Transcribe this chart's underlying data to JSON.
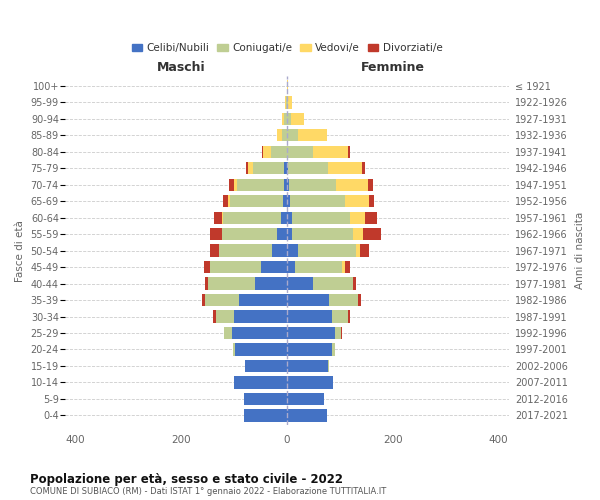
{
  "age_groups": [
    "0-4",
    "5-9",
    "10-14",
    "15-19",
    "20-24",
    "25-29",
    "30-34",
    "35-39",
    "40-44",
    "45-49",
    "50-54",
    "55-59",
    "60-64",
    "65-69",
    "70-74",
    "75-79",
    "80-84",
    "85-89",
    "90-94",
    "95-99",
    "100+"
  ],
  "birth_years": [
    "2017-2021",
    "2012-2016",
    "2007-2011",
    "2002-2006",
    "1997-2001",
    "1992-1996",
    "1987-1991",
    "1982-1986",
    "1977-1981",
    "1972-1976",
    "1967-1971",
    "1962-1966",
    "1957-1961",
    "1952-1956",
    "1947-1951",
    "1942-1946",
    "1937-1941",
    "1932-1936",
    "1927-1931",
    "1922-1926",
    "≤ 1921"
  ],
  "males": {
    "celibi": [
      82,
      82,
      100,
      80,
      98,
      105,
      100,
      90,
      60,
      50,
      28,
      18,
      12,
      8,
      5,
      5,
      0,
      0,
      0,
      0,
      0
    ],
    "coniugati": [
      0,
      0,
      0,
      0,
      5,
      15,
      35,
      65,
      90,
      95,
      100,
      105,
      110,
      100,
      90,
      60,
      30,
      10,
      5,
      2,
      0
    ],
    "vedovi": [
      0,
      0,
      0,
      0,
      0,
      0,
      0,
      0,
      0,
      0,
      0,
      1,
      2,
      3,
      5,
      8,
      15,
      8,
      5,
      2,
      0
    ],
    "divorziati": [
      0,
      0,
      0,
      0,
      0,
      0,
      5,
      5,
      5,
      12,
      18,
      22,
      15,
      10,
      10,
      5,
      2,
      0,
      0,
      0,
      0
    ]
  },
  "females": {
    "nubili": [
      75,
      70,
      88,
      78,
      85,
      90,
      85,
      80,
      50,
      15,
      20,
      10,
      10,
      5,
      3,
      2,
      0,
      0,
      0,
      0,
      0
    ],
    "coniugate": [
      0,
      0,
      0,
      2,
      5,
      12,
      30,
      55,
      75,
      90,
      110,
      115,
      110,
      105,
      90,
      75,
      50,
      20,
      8,
      2,
      0
    ],
    "vedove": [
      0,
      0,
      0,
      0,
      0,
      0,
      0,
      0,
      0,
      5,
      8,
      18,
      28,
      45,
      60,
      65,
      65,
      55,
      25,
      8,
      2
    ],
    "divorziate": [
      0,
      0,
      0,
      0,
      0,
      2,
      5,
      5,
      5,
      10,
      18,
      35,
      22,
      10,
      10,
      5,
      5,
      0,
      0,
      0,
      0
    ]
  },
  "colors": {
    "celibi_nubili": "#4472C4",
    "coniugati": "#BFCE93",
    "vedovi": "#FFD966",
    "divorziati": "#C0392B"
  },
  "xlim": [
    -420,
    420
  ],
  "title": "Popolazione per età, sesso e stato civile - 2022",
  "subtitle": "COMUNE DI SUBIACO (RM) - Dati ISTAT 1° gennaio 2022 - Elaborazione TUTTITALIA.IT",
  "ylabel": "Fasce di età",
  "ylabel_right": "Anni di nascita",
  "legend_labels": [
    "Celibi/Nubili",
    "Coniugati/e",
    "Vedovi/e",
    "Divorziati/e"
  ]
}
